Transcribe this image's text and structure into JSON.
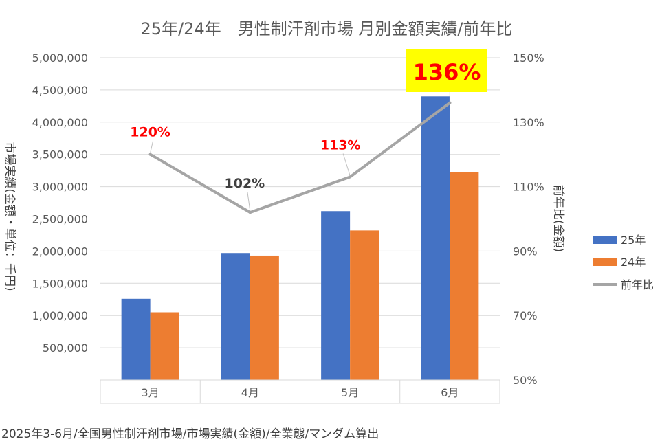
{
  "chart_data": {
    "type": "bar",
    "title": "25年/24年　男性制汗剤市場 月別金額実績/前年比",
    "categories": [
      "3月",
      "4月",
      "5月",
      "6月"
    ],
    "series": [
      {
        "name": "25年",
        "values": [
          1260000,
          1970000,
          2620000,
          4400000
        ],
        "color": "#4472C4",
        "axis": "left"
      },
      {
        "name": "24年",
        "values": [
          1050000,
          1930000,
          2320000,
          3220000
        ],
        "color": "#ED7D31",
        "axis": "left"
      }
    ],
    "line_series": {
      "name": "前年比",
      "type": "line",
      "axis": "right",
      "values": [
        120,
        102,
        113,
        136
      ],
      "labels": [
        "120%",
        "102%",
        "113%",
        "136%"
      ],
      "label_colors": [
        "#FF0000",
        "#404040",
        "#FF0000",
        "#FF0000"
      ],
      "highlight_index": 3,
      "highlight_bg": "#FFFF00",
      "color": "#A5A5A5"
    },
    "ylim": [
      0,
      5000000
    ],
    "yticks": [
      "500,000",
      "1,000,000",
      "1,500,000",
      "2,000,000",
      "2,500,000",
      "3,000,000",
      "3,500,000",
      "4,000,000",
      "4,500,000",
      "5,000,000"
    ],
    "y2lim": [
      50,
      150
    ],
    "y2ticks": [
      "50%",
      "70%",
      "90%",
      "110%",
      "130%",
      "150%"
    ],
    "ylabel": "市場実績(金額・単位：千円)",
    "y2label": "前年比(金額)",
    "xlabel": "",
    "grid": true,
    "legend_position": "right"
  },
  "footnote": "2025年3-6月/全国男性制汗剤市場/市場実績(金額)/全業態/マンダム算出"
}
